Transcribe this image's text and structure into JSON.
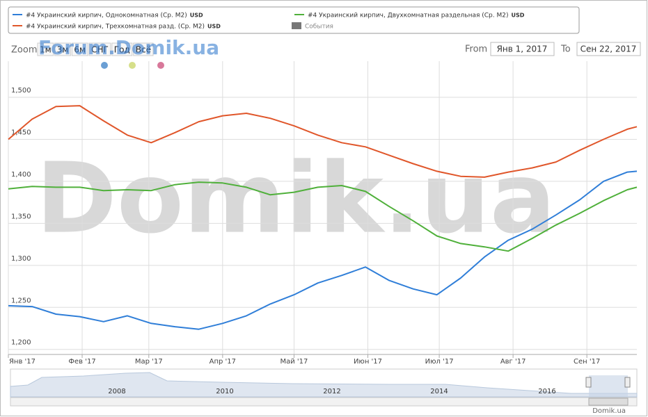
{
  "chart_data": {
    "type": "line",
    "legend_unit": "USD",
    "events_label": "События",
    "zoom_label": "Zoom",
    "zoom_buttons": [
      "1м",
      "3м",
      "6м",
      "СНГ",
      "Год",
      "Всё"
    ],
    "from_label": "From",
    "from_value": "Янв 1, 2017",
    "to_label": "To",
    "to_value": "Сен 22, 2017",
    "watermark_small": "Forum.Domik.ua",
    "watermark_big": "Domik.ua",
    "credit": "Domik.ua",
    "navigator_years": [
      "2008",
      "2010",
      "2012",
      "2014",
      "2016"
    ],
    "grid": true,
    "x": [
      0,
      10,
      20,
      30,
      40,
      50,
      60,
      70,
      80,
      90,
      100,
      110,
      120,
      130,
      140,
      150,
      160,
      170,
      180,
      190,
      200,
      210,
      220,
      230,
      240,
      250,
      260,
      264
    ],
    "xlim": [
      0,
      264
    ],
    "xticks": [
      {
        "value": 0,
        "label": "Янв '17"
      },
      {
        "value": 31,
        "label": "Фев '17"
      },
      {
        "value": 59,
        "label": "Мар '17"
      },
      {
        "value": 90,
        "label": "Апр '17"
      },
      {
        "value": 120,
        "label": "Май '17"
      },
      {
        "value": 151,
        "label": "Июн '17"
      },
      {
        "value": 181,
        "label": "Июл '17"
      },
      {
        "value": 212,
        "label": "Авг '17"
      },
      {
        "value": 243,
        "label": "Сен '17"
      }
    ],
    "ylim": [
      1194,
      1543
    ],
    "yticks": [
      {
        "value": 1200,
        "label": "1,200"
      },
      {
        "value": 1250,
        "label": "1,250"
      },
      {
        "value": 1300,
        "label": "1,300"
      },
      {
        "value": 1350,
        "label": "1,350"
      },
      {
        "value": 1400,
        "label": "1,400"
      },
      {
        "value": 1450,
        "label": "1,450"
      },
      {
        "value": 1500,
        "label": "1,500"
      }
    ],
    "series": [
      {
        "name": "#4 Украинский кирпич, Однокомнатная (Ср. М2)",
        "color": "#2f7ed8",
        "values": [
          1252,
          1251,
          1242,
          1239,
          1233,
          1240,
          1231,
          1227,
          1224,
          1231,
          1240,
          1254,
          1265,
          1279,
          1288,
          1298,
          1282,
          1272,
          1265,
          1285,
          1310,
          1330,
          1343,
          1360,
          1378,
          1400,
          1411,
          1412
        ]
      },
      {
        "name": "#4 Украинский кирпич, Двухкомнатная раздельная (Ср. М2)",
        "color": "#4fb03a",
        "values": [
          1391,
          1394,
          1393,
          1393,
          1389,
          1390,
          1389,
          1396,
          1399,
          1398,
          1393,
          1384,
          1387,
          1393,
          1395,
          1388,
          1370,
          1353,
          1335,
          1326,
          1322,
          1317,
          1332,
          1348,
          1362,
          1377,
          1390,
          1393
        ]
      },
      {
        "name": "#4 Украинский кирпич, Трехкомнатная разд. (Ср. М2)",
        "color": "#e0562a",
        "values": [
          1450,
          1474,
          1489,
          1490,
          1472,
          1455,
          1446,
          1458,
          1471,
          1478,
          1481,
          1475,
          1466,
          1455,
          1446,
          1441,
          1431,
          1421,
          1412,
          1406,
          1405,
          1411,
          1416,
          1423,
          1437,
          1450,
          1462,
          1465
        ]
      }
    ]
  }
}
